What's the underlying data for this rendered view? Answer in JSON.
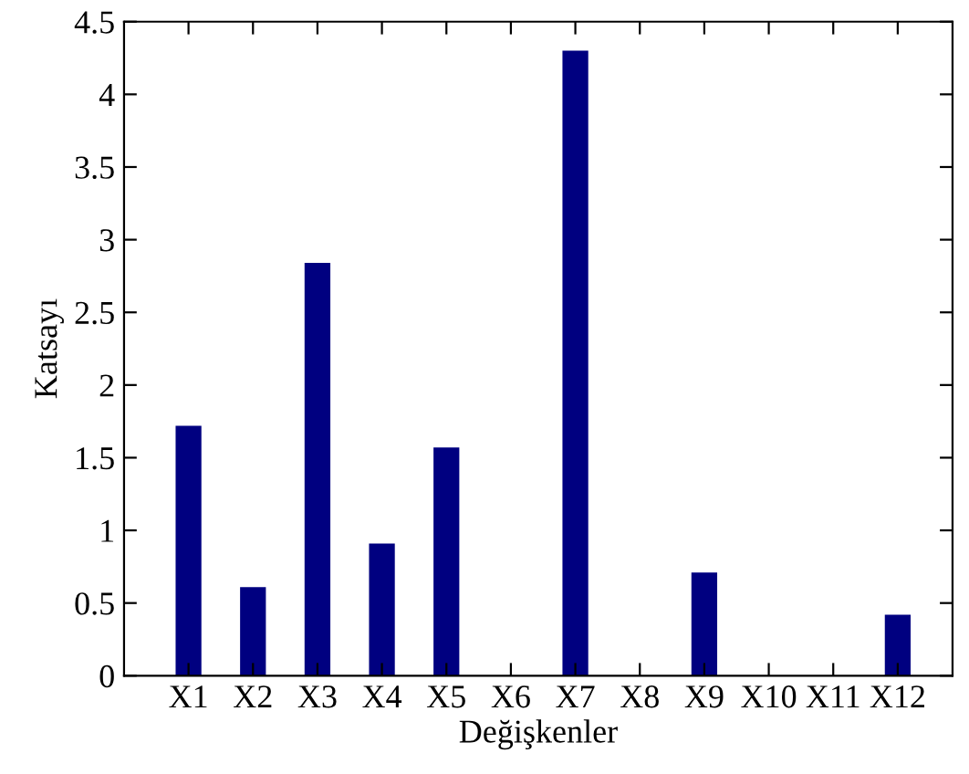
{
  "chart_data": {
    "type": "bar",
    "xlabel": "Değişkenler",
    "ylabel": "Katsayı",
    "categories": [
      "X1",
      "X2",
      "X3",
      "X4",
      "X5",
      "X6",
      "X7",
      "X8",
      "X9",
      "X10",
      "X11",
      "X12"
    ],
    "values": [
      1.72,
      0.61,
      2.84,
      0.91,
      1.57,
      0,
      4.3,
      0,
      0.71,
      0,
      0,
      0.42
    ],
    "color": "#000080",
    "ylim": [
      0,
      4.5
    ],
    "yticks": [
      0,
      0.5,
      1,
      1.5,
      2,
      2.5,
      3,
      3.5,
      4,
      4.5
    ],
    "grid": false
  }
}
